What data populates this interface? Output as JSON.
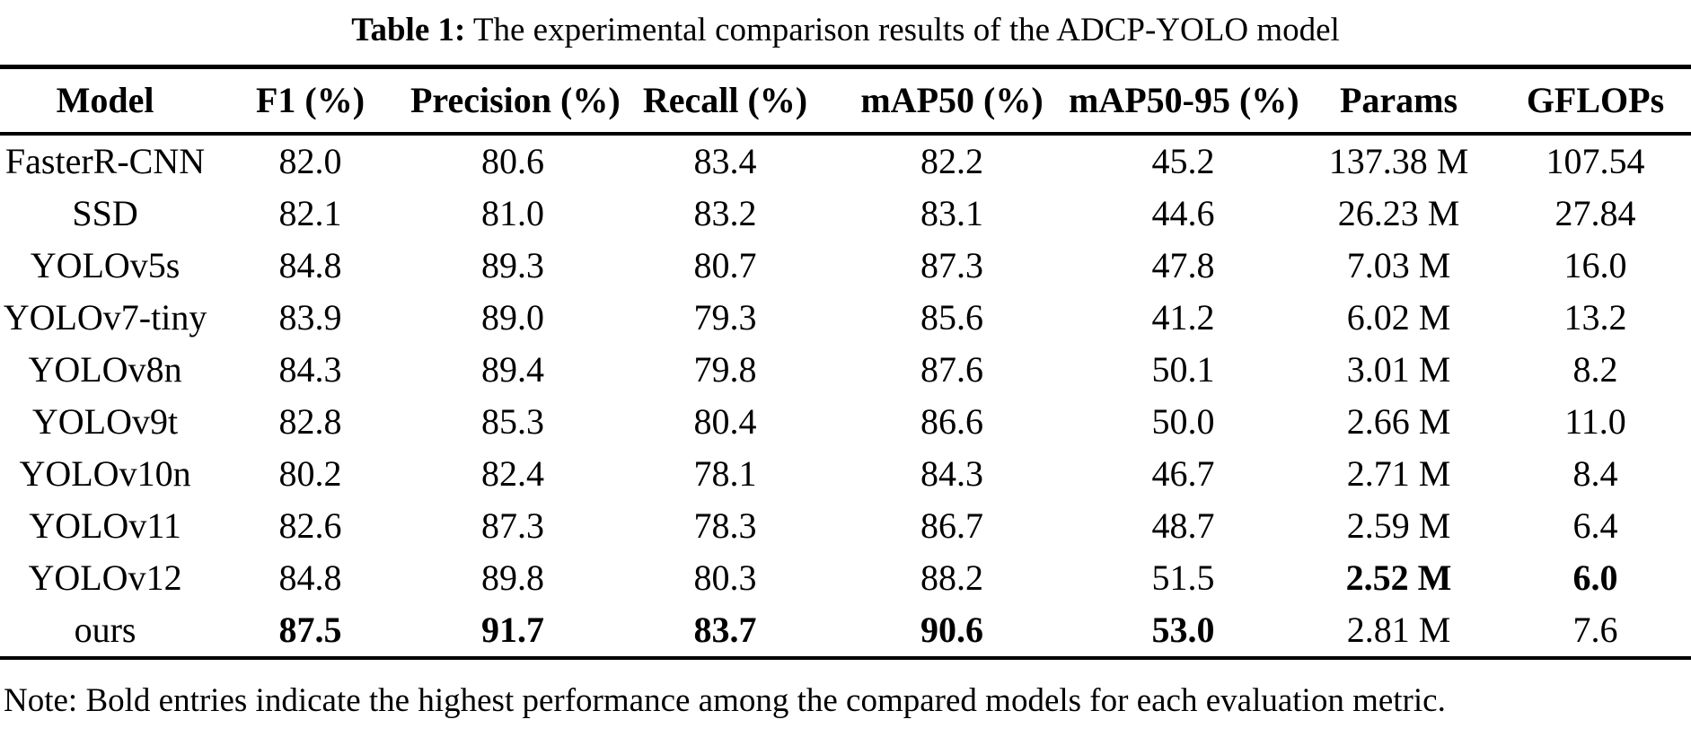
{
  "colors": {
    "text": "#000000",
    "background": "#ffffff"
  },
  "caption": {
    "label": "Table 1:",
    "text": " The experimental comparison results of the ADCP-YOLO model"
  },
  "table": {
    "columns": [
      "Model",
      "F1 (%)",
      "Precision (%)",
      "Recall (%)",
      "mAP50 (%)",
      "mAP50-95 (%)",
      "Params",
      "GFLOPs"
    ],
    "column_keys": [
      "model",
      "f1",
      "precision",
      "recall",
      "map50",
      "map50-95",
      "params",
      "gflops"
    ],
    "rows": [
      {
        "cells": [
          "FasterR-CNN",
          "82.0",
          "80.6",
          "83.4",
          "82.2",
          "45.2",
          "137.38 M",
          "107.54"
        ],
        "bold": [
          false,
          false,
          false,
          false,
          false,
          false,
          false,
          false
        ]
      },
      {
        "cells": [
          "SSD",
          "82.1",
          "81.0",
          "83.2",
          "83.1",
          "44.6",
          "26.23 M",
          "27.84"
        ],
        "bold": [
          false,
          false,
          false,
          false,
          false,
          false,
          false,
          false
        ]
      },
      {
        "cells": [
          "YOLOv5s",
          "84.8",
          "89.3",
          "80.7",
          "87.3",
          "47.8",
          "7.03 M",
          "16.0"
        ],
        "bold": [
          false,
          false,
          false,
          false,
          false,
          false,
          false,
          false
        ]
      },
      {
        "cells": [
          "YOLOv7-tiny",
          "83.9",
          "89.0",
          "79.3",
          "85.6",
          "41.2",
          "6.02 M",
          "13.2"
        ],
        "bold": [
          false,
          false,
          false,
          false,
          false,
          false,
          false,
          false
        ]
      },
      {
        "cells": [
          "YOLOv8n",
          "84.3",
          "89.4",
          "79.8",
          "87.6",
          "50.1",
          "3.01 M",
          "8.2"
        ],
        "bold": [
          false,
          false,
          false,
          false,
          false,
          false,
          false,
          false
        ]
      },
      {
        "cells": [
          "YOLOv9t",
          "82.8",
          "85.3",
          "80.4",
          "86.6",
          "50.0",
          "2.66 M",
          "11.0"
        ],
        "bold": [
          false,
          false,
          false,
          false,
          false,
          false,
          false,
          false
        ]
      },
      {
        "cells": [
          "YOLOv10n",
          "80.2",
          "82.4",
          "78.1",
          "84.3",
          "46.7",
          "2.71 M",
          "8.4"
        ],
        "bold": [
          false,
          false,
          false,
          false,
          false,
          false,
          false,
          false
        ]
      },
      {
        "cells": [
          "YOLOv11",
          "82.6",
          "87.3",
          "78.3",
          "86.7",
          "48.7",
          "2.59 M",
          "6.4"
        ],
        "bold": [
          false,
          false,
          false,
          false,
          false,
          false,
          false,
          false
        ]
      },
      {
        "cells": [
          "YOLOv12",
          "84.8",
          "89.8",
          "80.3",
          "88.2",
          "51.5",
          "2.52 M",
          "6.0"
        ],
        "bold": [
          false,
          false,
          false,
          false,
          false,
          false,
          true,
          true
        ]
      },
      {
        "cells": [
          "ours",
          "87.5",
          "91.7",
          "83.7",
          "90.6",
          "53.0",
          "2.81 M",
          "7.6"
        ],
        "bold": [
          false,
          true,
          true,
          true,
          true,
          true,
          false,
          false
        ]
      }
    ]
  },
  "note": "Note: Bold entries indicate the highest performance among the compared models for each evaluation metric."
}
